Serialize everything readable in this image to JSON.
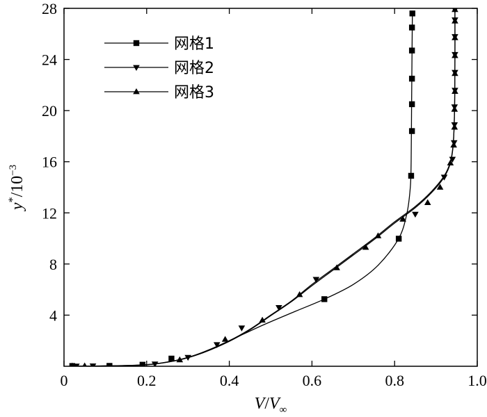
{
  "chart_data": {
    "type": "line",
    "xlabel": {
      "base": "V",
      "sep": "/",
      "base2": "V",
      "sub2": "∞"
    },
    "ylabel": {
      "base": "y",
      "sup": "*",
      "rest": "/10",
      "sup2": "−3"
    },
    "xlim": [
      0,
      1.0
    ],
    "ylim": [
      0,
      28
    ],
    "xticks": [
      0,
      0.2,
      0.4,
      0.6,
      0.8,
      1.0
    ],
    "xtick_labels": [
      "0",
      "0.2",
      "0.4",
      "0.6",
      "0.8",
      "1.0"
    ],
    "yticks": [
      4,
      8,
      12,
      16,
      20,
      24,
      28
    ],
    "ytick_labels": [
      "4",
      "8",
      "12",
      "16",
      "20",
      "24",
      "28"
    ],
    "grid": false,
    "legend_position": "top-left",
    "series": [
      {
        "name": "网格1",
        "marker": "square",
        "curve": [
          [
            0.02,
            0.0
          ],
          [
            0.1,
            0.03
          ],
          [
            0.17,
            0.08
          ],
          [
            0.22,
            0.18
          ],
          [
            0.27,
            0.45
          ],
          [
            0.33,
            1.0
          ],
          [
            0.4,
            2.0
          ],
          [
            0.48,
            3.2
          ],
          [
            0.56,
            4.3
          ],
          [
            0.63,
            5.25
          ],
          [
            0.7,
            6.4
          ],
          [
            0.76,
            7.9
          ],
          [
            0.81,
            10.0
          ],
          [
            0.83,
            12.0
          ],
          [
            0.838,
            14.0
          ],
          [
            0.84,
            16.0
          ],
          [
            0.841,
            20.0
          ],
          [
            0.842,
            24.0
          ],
          [
            0.843,
            27.6
          ]
        ],
        "points": [
          [
            0.02,
            0.02
          ],
          [
            0.11,
            0.03
          ],
          [
            0.19,
            0.12
          ],
          [
            0.26,
            0.6
          ],
          [
            0.63,
            5.25
          ],
          [
            0.81,
            9.98
          ],
          [
            0.84,
            14.9
          ],
          [
            0.842,
            18.4
          ],
          [
            0.842,
            20.5
          ],
          [
            0.842,
            22.5
          ],
          [
            0.842,
            24.7
          ],
          [
            0.842,
            26.5
          ],
          [
            0.843,
            27.6
          ]
        ]
      },
      {
        "name": "网格2",
        "marker": "triangle-down",
        "curve": [
          [
            0.02,
            0.0
          ],
          [
            0.08,
            0.02
          ],
          [
            0.15,
            0.05
          ],
          [
            0.2,
            0.12
          ],
          [
            0.24,
            0.28
          ],
          [
            0.29,
            0.6
          ],
          [
            0.34,
            1.15
          ],
          [
            0.4,
            2.0
          ],
          [
            0.45,
            2.9
          ],
          [
            0.5,
            4.0
          ],
          [
            0.55,
            5.1
          ],
          [
            0.6,
            6.4
          ],
          [
            0.65,
            7.6
          ],
          [
            0.7,
            8.8
          ],
          [
            0.75,
            10.0
          ],
          [
            0.8,
            11.3
          ],
          [
            0.85,
            12.5
          ],
          [
            0.89,
            13.7
          ],
          [
            0.92,
            14.9
          ],
          [
            0.935,
            16.0
          ],
          [
            0.942,
            17.5
          ],
          [
            0.945,
            20.0
          ],
          [
            0.946,
            24.0
          ],
          [
            0.946,
            27.9
          ]
        ],
        "points": [
          [
            0.03,
            0.02
          ],
          [
            0.07,
            0.03
          ],
          [
            0.22,
            0.18
          ],
          [
            0.3,
            0.7
          ],
          [
            0.37,
            1.7
          ],
          [
            0.43,
            3.0
          ],
          [
            0.52,
            4.6
          ],
          [
            0.61,
            6.8
          ],
          [
            0.85,
            11.9
          ],
          [
            0.92,
            14.8
          ],
          [
            0.94,
            16.2
          ],
          [
            0.944,
            17.5
          ],
          [
            0.945,
            18.9
          ],
          [
            0.945,
            20.3
          ],
          [
            0.946,
            21.6
          ],
          [
            0.946,
            23.0
          ],
          [
            0.946,
            24.4
          ],
          [
            0.946,
            25.8
          ],
          [
            0.946,
            27.1
          ],
          [
            0.946,
            27.9
          ]
        ]
      },
      {
        "name": "网格3",
        "marker": "triangle-up",
        "curve": [
          [
            0.02,
            0.0
          ],
          [
            0.08,
            0.02
          ],
          [
            0.15,
            0.05
          ],
          [
            0.2,
            0.12
          ],
          [
            0.24,
            0.27
          ],
          [
            0.29,
            0.58
          ],
          [
            0.34,
            1.1
          ],
          [
            0.4,
            1.95
          ],
          [
            0.45,
            2.85
          ],
          [
            0.5,
            3.95
          ],
          [
            0.55,
            5.05
          ],
          [
            0.6,
            6.3
          ],
          [
            0.65,
            7.5
          ],
          [
            0.7,
            8.7
          ],
          [
            0.75,
            9.9
          ],
          [
            0.8,
            11.2
          ],
          [
            0.85,
            12.4
          ],
          [
            0.89,
            13.6
          ],
          [
            0.92,
            14.8
          ],
          [
            0.935,
            15.9
          ],
          [
            0.942,
            17.4
          ],
          [
            0.945,
            20.0
          ],
          [
            0.946,
            24.0
          ],
          [
            0.946,
            27.9
          ]
        ],
        "points": [
          [
            0.02,
            0.02
          ],
          [
            0.05,
            0.03
          ],
          [
            0.28,
            0.5
          ],
          [
            0.39,
            2.1
          ],
          [
            0.48,
            3.6
          ],
          [
            0.57,
            5.6
          ],
          [
            0.66,
            7.7
          ],
          [
            0.73,
            9.3
          ],
          [
            0.76,
            10.2
          ],
          [
            0.82,
            11.5
          ],
          [
            0.88,
            12.8
          ],
          [
            0.91,
            14.0
          ],
          [
            0.935,
            15.9
          ],
          [
            0.943,
            17.3
          ],
          [
            0.945,
            18.7
          ],
          [
            0.945,
            20.1
          ],
          [
            0.946,
            21.5
          ],
          [
            0.946,
            22.9
          ],
          [
            0.946,
            24.3
          ],
          [
            0.946,
            25.7
          ],
          [
            0.946,
            27.0
          ],
          [
            0.946,
            27.9
          ]
        ]
      }
    ]
  }
}
